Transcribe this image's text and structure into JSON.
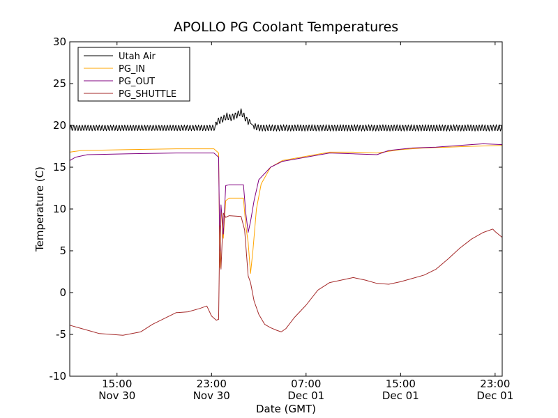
{
  "chart_data": {
    "type": "line",
    "title": "APOLLO PG Coolant Temperatures",
    "xlabel": "Date (GMT)",
    "ylabel": "Temperature (C)",
    "ylim": [
      -10,
      30
    ],
    "yticks": [
      -10,
      -5,
      0,
      5,
      10,
      15,
      20,
      25,
      30
    ],
    "xlim": [
      11.0,
      47.6
    ],
    "x_unit": "hours since Nov 30 00:00 GMT",
    "xticks": [
      {
        "x": 15,
        "line1": "15:00",
        "line2": "Nov 30"
      },
      {
        "x": 23,
        "line1": "23:00",
        "line2": "Nov 30"
      },
      {
        "x": 31,
        "line1": "07:00",
        "line2": "Dec 01"
      },
      {
        "x": 39,
        "line1": "15:00",
        "line2": "Dec 01"
      },
      {
        "x": 47,
        "line1": "23:00",
        "line2": "Dec 01"
      }
    ],
    "legend_position": "top-left",
    "series": [
      {
        "name": "Utah Air",
        "color": "#000000",
        "oscillating": true,
        "points": [
          [
            11.0,
            19.7
          ],
          [
            23.3,
            19.7
          ],
          [
            23.4,
            20.4
          ],
          [
            24.0,
            20.8
          ],
          [
            24.3,
            21.1
          ],
          [
            24.6,
            20.9
          ],
          [
            25.1,
            21.2
          ],
          [
            25.5,
            21.6
          ],
          [
            26.0,
            20.6
          ],
          [
            26.6,
            19.9
          ],
          [
            27.0,
            19.7
          ],
          [
            47.6,
            19.7
          ]
        ],
        "osc_ranges": [
          [
            11.0,
            23.4,
            0.35
          ],
          [
            23.4,
            26.3,
            0.4
          ],
          [
            26.6,
            47.6,
            0.38
          ]
        ]
      },
      {
        "name": "PG_IN",
        "color": "#ffa500",
        "oscillating": false,
        "points": [
          [
            11.0,
            16.8
          ],
          [
            12.0,
            17.0
          ],
          [
            16.0,
            17.1
          ],
          [
            20.0,
            17.2
          ],
          [
            23.2,
            17.2
          ],
          [
            23.6,
            16.7
          ],
          [
            23.7,
            3.0
          ],
          [
            23.8,
            10.0
          ],
          [
            24.0,
            6.5
          ],
          [
            24.2,
            11.0
          ],
          [
            24.5,
            11.3
          ],
          [
            25.7,
            11.3
          ],
          [
            25.9,
            8.0
          ],
          [
            26.1,
            6.0
          ],
          [
            26.3,
            2.3
          ],
          [
            26.5,
            5.0
          ],
          [
            26.8,
            10.0
          ],
          [
            27.2,
            13.0
          ],
          [
            28.0,
            15.0
          ],
          [
            29.0,
            15.8
          ],
          [
            31.0,
            16.3
          ],
          [
            33.0,
            16.8
          ],
          [
            35.0,
            16.8
          ],
          [
            37.0,
            16.7
          ],
          [
            39.0,
            17.1
          ],
          [
            41.0,
            17.3
          ],
          [
            43.0,
            17.4
          ],
          [
            45.0,
            17.5
          ],
          [
            47.6,
            17.6
          ]
        ]
      },
      {
        "name": "PG_OUT",
        "color": "#800080",
        "oscillating": false,
        "points": [
          [
            11.0,
            15.8
          ],
          [
            11.5,
            16.2
          ],
          [
            12.5,
            16.5
          ],
          [
            16.0,
            16.6
          ],
          [
            20.0,
            16.7
          ],
          [
            23.2,
            16.7
          ],
          [
            23.6,
            16.2
          ],
          [
            23.7,
            5.0
          ],
          [
            23.8,
            10.5
          ],
          [
            24.0,
            7.0
          ],
          [
            24.2,
            12.8
          ],
          [
            24.5,
            12.9
          ],
          [
            25.7,
            12.9
          ],
          [
            25.9,
            9.5
          ],
          [
            26.1,
            7.2
          ],
          [
            26.3,
            8.5
          ],
          [
            26.6,
            11.0
          ],
          [
            27.0,
            13.5
          ],
          [
            28.0,
            15.0
          ],
          [
            29.0,
            15.7
          ],
          [
            31.0,
            16.2
          ],
          [
            33.0,
            16.7
          ],
          [
            35.0,
            16.6
          ],
          [
            37.0,
            16.5
          ],
          [
            38.0,
            17.0
          ],
          [
            40.0,
            17.3
          ],
          [
            42.0,
            17.4
          ],
          [
            44.0,
            17.6
          ],
          [
            46.0,
            17.8
          ],
          [
            47.6,
            17.7
          ]
        ]
      },
      {
        "name": "PG_SHUTTLE",
        "color": "#a52a2a",
        "oscillating": false,
        "points": [
          [
            11.0,
            -3.9
          ],
          [
            12.0,
            -4.3
          ],
          [
            13.5,
            -4.9
          ],
          [
            14.5,
            -5.0
          ],
          [
            15.5,
            -5.1
          ],
          [
            17.0,
            -4.7
          ],
          [
            18.0,
            -3.8
          ],
          [
            19.0,
            -3.1
          ],
          [
            20.0,
            -2.4
          ],
          [
            21.0,
            -2.3
          ],
          [
            22.0,
            -1.9
          ],
          [
            22.6,
            -1.6
          ],
          [
            23.0,
            -2.8
          ],
          [
            23.4,
            -3.3
          ],
          [
            23.6,
            -3.2
          ],
          [
            23.7,
            8.0
          ],
          [
            23.8,
            2.8
          ],
          [
            24.0,
            9.5
          ],
          [
            24.2,
            9.0
          ],
          [
            24.5,
            9.2
          ],
          [
            25.5,
            9.1
          ],
          [
            25.8,
            7.5
          ],
          [
            26.1,
            2.0
          ],
          [
            26.3,
            1.2
          ],
          [
            26.6,
            -1.0
          ],
          [
            27.0,
            -2.6
          ],
          [
            27.5,
            -3.8
          ],
          [
            28.0,
            -4.2
          ],
          [
            28.5,
            -4.5
          ],
          [
            28.9,
            -4.7
          ],
          [
            29.3,
            -4.3
          ],
          [
            30.0,
            -3.0
          ],
          [
            31.0,
            -1.5
          ],
          [
            32.0,
            0.3
          ],
          [
            33.0,
            1.2
          ],
          [
            34.0,
            1.5
          ],
          [
            35.0,
            1.8
          ],
          [
            36.0,
            1.5
          ],
          [
            37.0,
            1.1
          ],
          [
            38.0,
            1.0
          ],
          [
            39.0,
            1.3
          ],
          [
            40.0,
            1.7
          ],
          [
            41.0,
            2.1
          ],
          [
            42.0,
            2.8
          ],
          [
            43.0,
            4.0
          ],
          [
            44.0,
            5.3
          ],
          [
            45.0,
            6.4
          ],
          [
            46.0,
            7.2
          ],
          [
            46.8,
            7.6
          ],
          [
            47.0,
            7.3
          ],
          [
            47.6,
            6.6
          ]
        ]
      }
    ]
  }
}
